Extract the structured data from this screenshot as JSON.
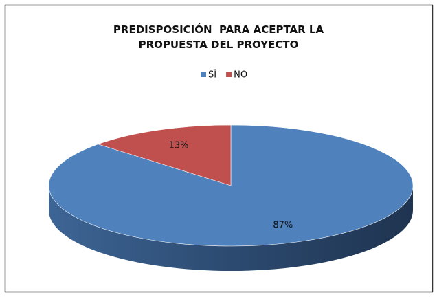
{
  "chart_data": {
    "type": "pie",
    "title": "PREDISPOSICIÓN  PARA ACEPTAR LA PROPUESTA DEL PROYECTO",
    "categories": [
      "SÍ",
      "NO"
    ],
    "values": [
      87,
      13
    ],
    "value_labels": [
      "87%",
      "13%"
    ],
    "colors": [
      "#4f81bd",
      "#c0504d"
    ],
    "legend": "top"
  }
}
